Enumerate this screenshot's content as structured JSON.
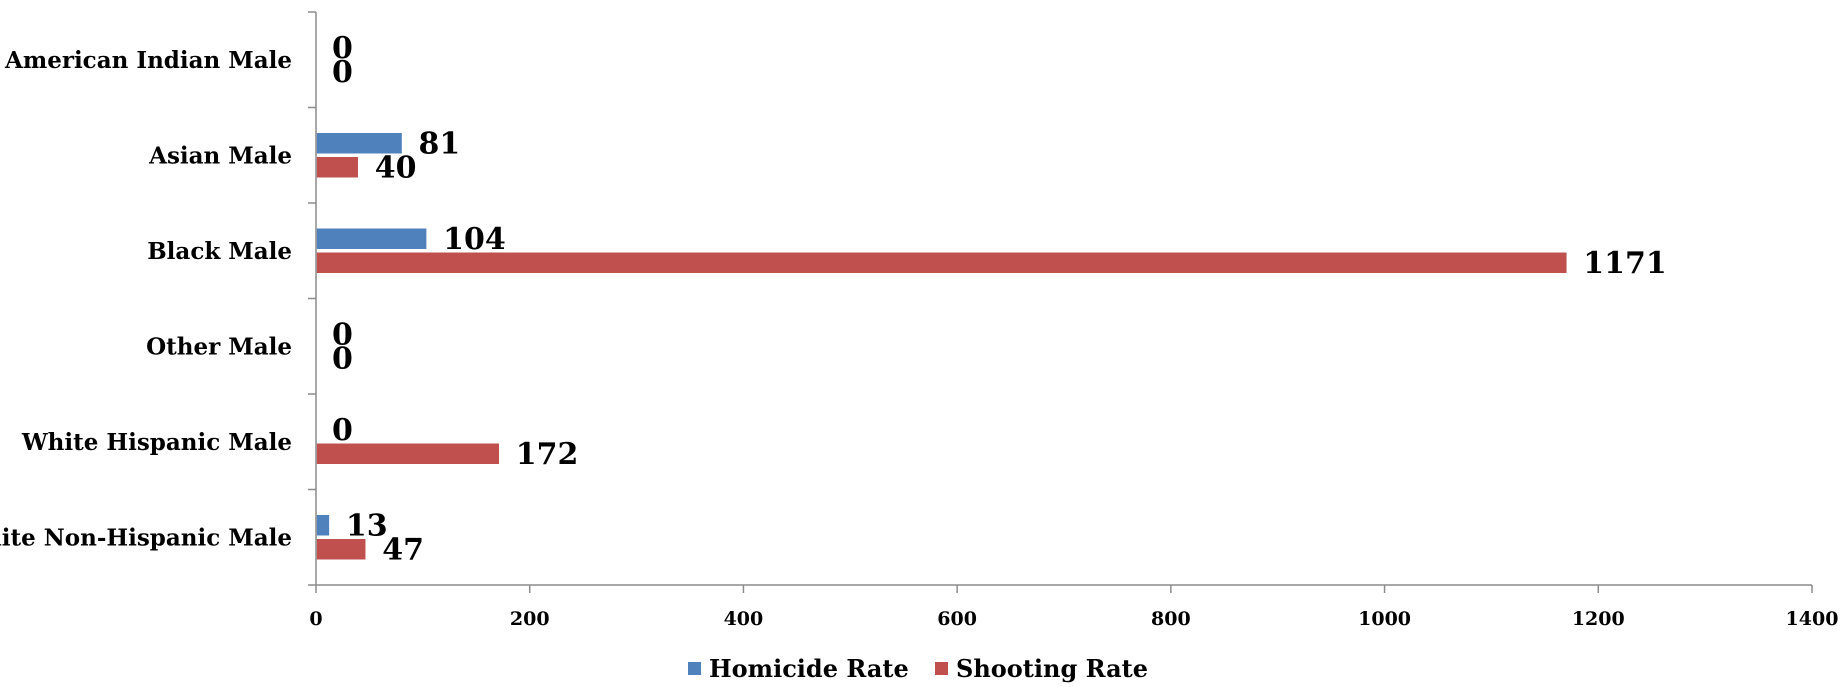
{
  "chart_data": {
    "type": "bar",
    "orientation": "horizontal",
    "title": "",
    "xlabel": "",
    "ylabel": "",
    "categories": [
      "American Indian Male",
      "Asian Male",
      "Black Male",
      "Other Male",
      "White Hispanic Male",
      "White Non-Hispanic Male"
    ],
    "series": [
      {
        "name": "Homicide Rate",
        "color": "#4f81bd",
        "values": [
          0,
          81,
          104,
          0,
          0,
          13
        ]
      },
      {
        "name": "Shooting Rate",
        "color": "#c0504d",
        "values": [
          0,
          40,
          1171,
          0,
          172,
          47
        ]
      }
    ],
    "xlim": [
      0,
      1400
    ],
    "xticks": [
      0,
      200,
      400,
      600,
      800,
      1000,
      1200,
      1400
    ],
    "grid": false,
    "legend_position": "bottom"
  }
}
